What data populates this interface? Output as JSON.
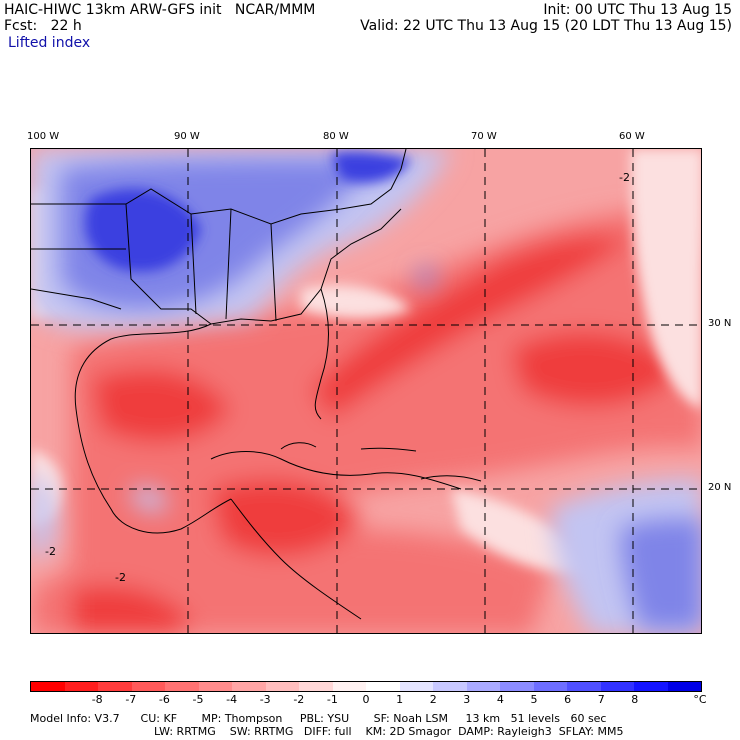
{
  "header": {
    "line1_left": "HAIC-HIWC 13km ARW-GFS init   NCAR/MMM",
    "line2_left": "Fcst:   22 h",
    "field_name": "Lifted index",
    "init": "Init: 00 UTC Thu 13 Aug 15",
    "valid": "Valid: 22 UTC Thu 13 Aug 15 (20 LDT Thu 13 Aug 15)"
  },
  "map": {
    "lon_labels": [
      "100 W",
      "90 W",
      "80 W",
      "70 W",
      "60 W"
    ],
    "lat_labels": [
      "30 N",
      "20 N"
    ],
    "contour_labels": [
      "-2",
      "-2",
      "-2"
    ],
    "colors": {
      "very_unstable": "#ef3c3c",
      "unstable": "#f47373",
      "mild": "#f7a3a3",
      "neutral": "#fce0e0",
      "stable_light": "#c2c4f2",
      "stable": "#7f84e8",
      "stable_strong": "#3a3fe0",
      "coast": "#000000"
    }
  },
  "colorbar": {
    "colors": [
      "#ff0000",
      "#ff1e1e",
      "#ff3c3c",
      "#ff5a5a",
      "#ff7373",
      "#ff8c8c",
      "#ffa5a5",
      "#ffbebe",
      "#ffd7d7",
      "#fff2f2",
      "#ffffff",
      "#e4e4ff",
      "#c8c8ff",
      "#aaaaff",
      "#8c8cff",
      "#6e6eff",
      "#5050ff",
      "#3232ff",
      "#1414ff",
      "#0000e6"
    ],
    "ticks": [
      "-8",
      "-7",
      "-6",
      "-5",
      "-4",
      "-3",
      "-2",
      "-1",
      "0",
      "1",
      "2",
      "3",
      "4",
      "5",
      "6",
      "7",
      "8"
    ],
    "unit": "°C"
  },
  "footer": {
    "line1": "Model Info: V3.7      CU: KF       MP: Thompson     PBL: YSU       SF: Noah LSM     13 km   51 levels   60 sec",
    "line2": "LW: RRTMG    SW: RRTMG   DIFF: full    KM: 2D Smagor  DAMP: Rayleigh3  SFLAY: MM5"
  }
}
